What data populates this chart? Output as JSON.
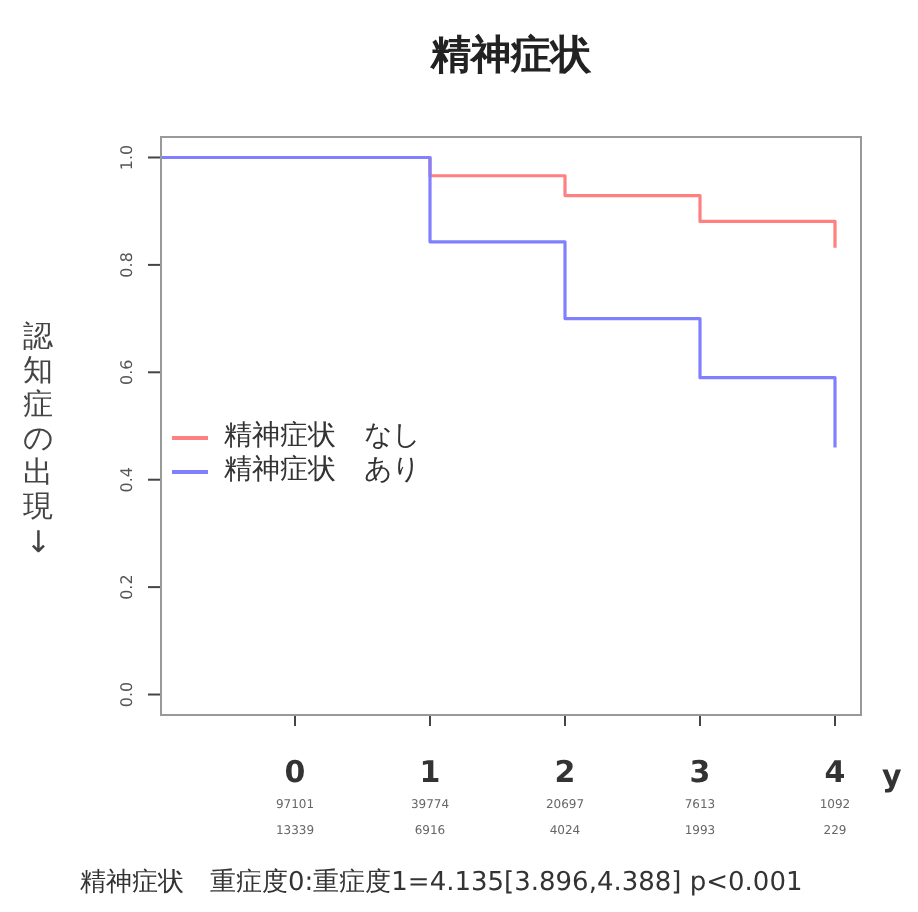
{
  "chart_data": {
    "type": "step",
    "title": "精神症状",
    "xlabel": "y",
    "ylabel": "認知症の出現→",
    "series": [
      {
        "name": "精神症状　なし",
        "color": "#ff8080",
        "x": [
          -1,
          1,
          2,
          3,
          4
        ],
        "values": [
          1.0,
          0.966,
          0.929,
          0.881,
          0.832
        ]
      },
      {
        "name": "精神症状　あり",
        "color": "#8080ff",
        "x": [
          -1,
          1,
          2,
          3,
          4
        ],
        "values": [
          1.0,
          0.843,
          0.7,
          0.59,
          0.46
        ]
      }
    ],
    "xlim": [
      -1,
      4.2
    ],
    "xticks": [
      0,
      1,
      2,
      3,
      4
    ],
    "ylim": [
      -0.04,
      1.04
    ],
    "yticks": [
      {
        "value": 0,
        "label": "0.0"
      },
      {
        "value": 0.2,
        "label": "0.2"
      },
      {
        "value": 0.4,
        "label": "0.4"
      },
      {
        "value": 0.6,
        "label": "0.6"
      },
      {
        "value": 0.8,
        "label": "0.8"
      },
      {
        "value": 1,
        "label": "1.0"
      }
    ],
    "legend": "left",
    "annotations": [
      "97101",
      "39774",
      "20697",
      "7613",
      "1092",
      "13339",
      "6916",
      "4024",
      "1993",
      "229",
      "精神症状　重症度0:重症度1=4.135[3.896,4.388] p<0.001"
    ]
  }
}
